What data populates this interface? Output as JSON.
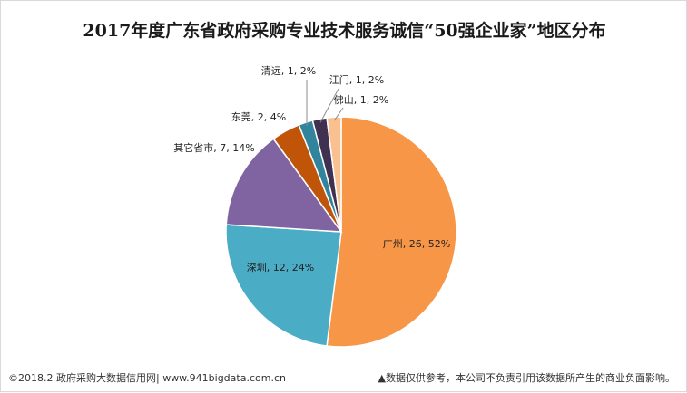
{
  "chart_data": {
    "type": "pie",
    "title": "2017年度广东省政府采购专业技术服务诚信“50强企业家”地区分布",
    "slices": [
      {
        "name": "广州",
        "value": 26,
        "percent": "52%",
        "label": "广州, 26, 52%",
        "color": "#F79646"
      },
      {
        "name": "深圳",
        "value": 12,
        "percent": "24%",
        "label": "深圳, 12, 24%",
        "color": "#4BACC6"
      },
      {
        "name": "其它省市",
        "value": 7,
        "percent": "14%",
        "label": "其它省市, 7, 14%",
        "color": "#8064A2"
      },
      {
        "name": "东莞",
        "value": 2,
        "percent": "4%",
        "label": "东莞, 2, 4%",
        "color": "#C0550A"
      },
      {
        "name": "清远",
        "value": 1,
        "percent": "2%",
        "label": "清远, 1, 2%",
        "color": "#31849B"
      },
      {
        "name": "江门",
        "value": 1,
        "percent": "2%",
        "label": "江门, 1, 2%",
        "color": "#403151"
      },
      {
        "name": "佛山",
        "value": 1,
        "percent": "2%",
        "label": "佛山, 1, 2%",
        "color": "#FAC090"
      }
    ],
    "legend": "none",
    "data_labels": "category, value, percent"
  },
  "footer": {
    "source": "©2018.2 政府采购大数据信用网| www.941bigdata.com.cn",
    "disclaimer": "▲数据仅供参考，本公司不负责引用该数据所产生的商业负面影响。"
  }
}
